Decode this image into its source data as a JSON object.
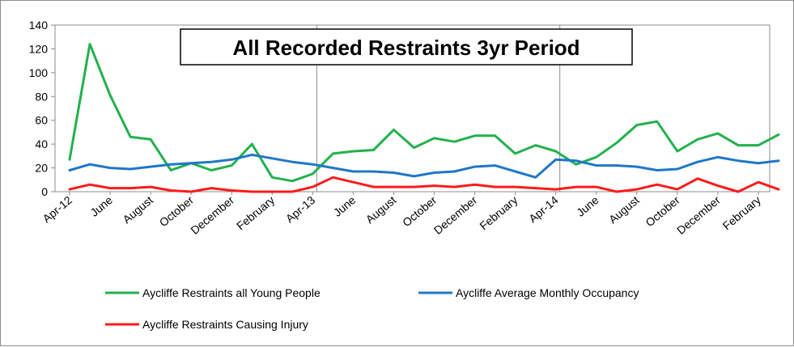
{
  "chart_data": {
    "type": "line",
    "title": "All Recorded Restraints 3yr Period",
    "xlabel": "",
    "ylabel": "",
    "ylim": [
      0,
      140
    ],
    "yticks": [
      0,
      20,
      40,
      60,
      80,
      100,
      120,
      140
    ],
    "x_tick_labels": [
      "Apr-12",
      "June",
      "August",
      "October",
      "December",
      "February",
      "Apr-13",
      "June",
      "August",
      "October",
      "December",
      "February",
      "Apr-14",
      "June",
      "August",
      "October",
      "December",
      "February"
    ],
    "grid": "vertical lines at Apr-13 and Apr-14",
    "legend_position": "bottom",
    "series": [
      {
        "name": "Aycliffe Restraints all Young People",
        "color": "#22b14c",
        "values": [
          27,
          124,
          81,
          46,
          44,
          18,
          24,
          18,
          22,
          40,
          12,
          9,
          15,
          32,
          34,
          35,
          52,
          37,
          45,
          42,
          47,
          47,
          32,
          39,
          34,
          23,
          29,
          41,
          56,
          59,
          34,
          44,
          49,
          39,
          39,
          48
        ]
      },
      {
        "name": "Aycliffe Average Monthly Occupancy",
        "color": "#1f77c8",
        "values": [
          18,
          23,
          20,
          19,
          21,
          23,
          24,
          25,
          27,
          31,
          28,
          25,
          23,
          20,
          17,
          17,
          16,
          13,
          16,
          17,
          21,
          22,
          17,
          12,
          27,
          26,
          22,
          22,
          21,
          18,
          19,
          25,
          29,
          26,
          24,
          26
        ]
      },
      {
        "name": "Aycliffe Restraints Causing Injury",
        "color": "#ff1a1a",
        "values": [
          2,
          6,
          3,
          3,
          4,
          1,
          0,
          3,
          1,
          0,
          0,
          0,
          4,
          12,
          8,
          4,
          4,
          4,
          5,
          4,
          6,
          4,
          4,
          3,
          2,
          4,
          4,
          0,
          2,
          6,
          2,
          11,
          5,
          0,
          8,
          2
        ]
      }
    ]
  }
}
